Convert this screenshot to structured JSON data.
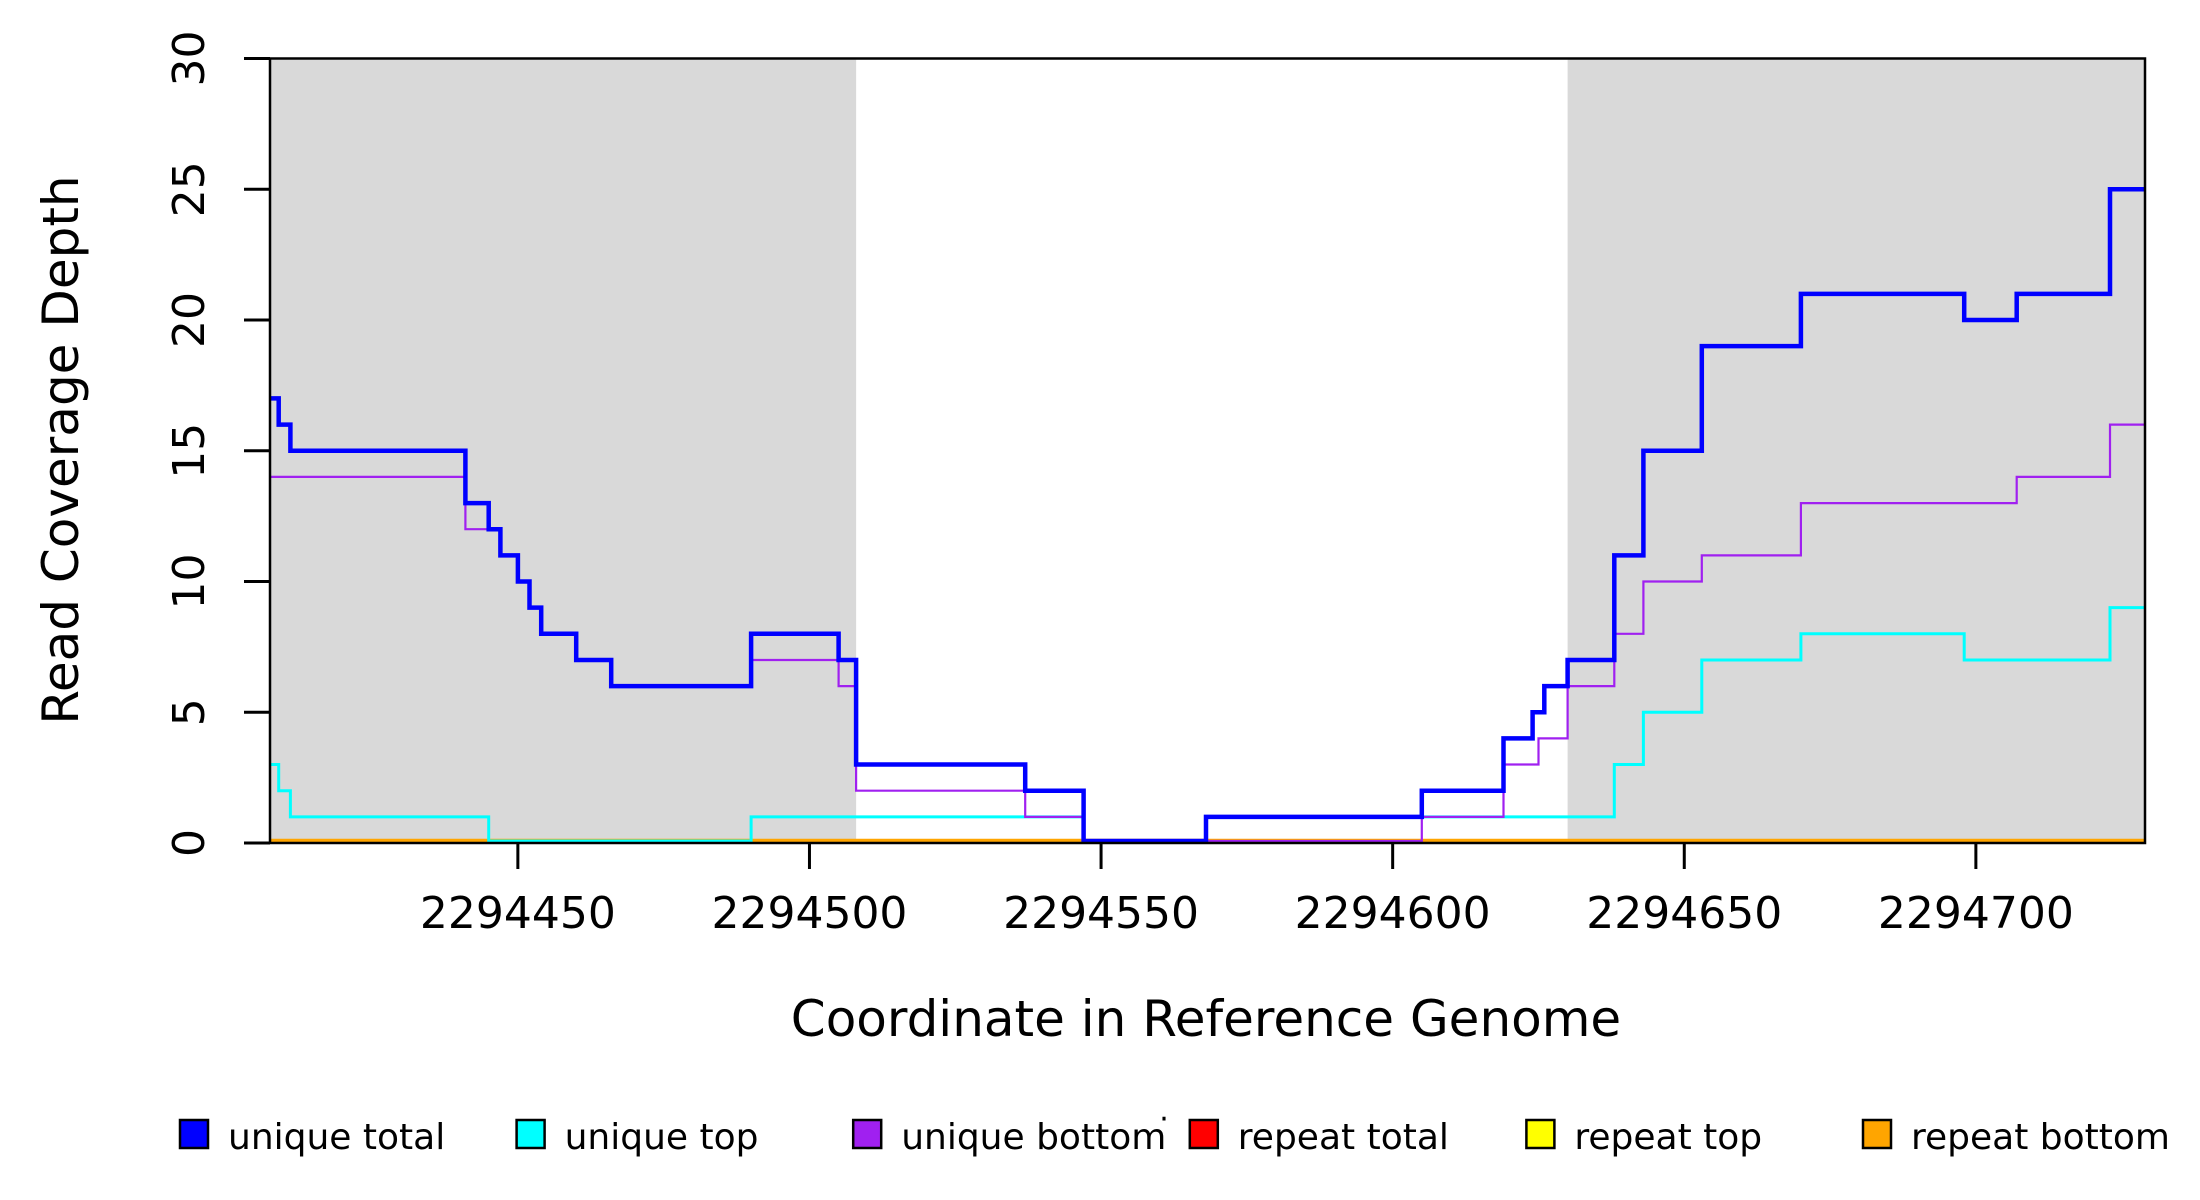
{
  "chart_data": {
    "type": "step-line",
    "title": "",
    "xlabel": "Coordinate in Reference Genome",
    "ylabel": "Read Coverage Depth",
    "xlim": [
      2294407.5,
      2294729
    ],
    "ylim": [
      0,
      30
    ],
    "xticks": [
      2294450,
      2294500,
      2294550,
      2294600,
      2294650,
      2294700
    ],
    "yticks": [
      0,
      5,
      10,
      15,
      20,
      25,
      30
    ],
    "grid": false,
    "background_color": "#ffffff",
    "shaded_region_color": "#d9d9d9",
    "shaded_regions": [
      {
        "x0": 2294407.5,
        "x1": 2294508
      },
      {
        "x0": 2294630,
        "x1": 2294729
      }
    ],
    "series": [
      {
        "name": "repeat total",
        "color": "#ff0000",
        "line_width": 2.5,
        "points": [
          [
            2294407.5,
            0
          ]
        ]
      },
      {
        "name": "repeat top",
        "color": "#ffff00",
        "line_width": 2.5,
        "points": [
          [
            2294407.5,
            0
          ]
        ]
      },
      {
        "name": "repeat bottom",
        "color": "#ffa500",
        "line_width": 4.5,
        "points": [
          [
            2294407.5,
            0
          ]
        ]
      },
      {
        "name": "unique top",
        "color": "#00ffff",
        "line_width": 3,
        "points": [
          [
            2294407.5,
            3
          ],
          [
            2294409,
            2
          ],
          [
            2294411,
            1
          ],
          [
            2294445,
            0
          ],
          [
            2294490,
            1
          ],
          [
            2294547,
            0
          ],
          [
            2294568,
            1
          ],
          [
            2294638,
            3
          ],
          [
            2294643,
            5
          ],
          [
            2294653,
            7
          ],
          [
            2294670,
            8
          ],
          [
            2294698,
            7
          ],
          [
            2294723,
            9
          ]
        ]
      },
      {
        "name": "unique bottom",
        "color": "#a020f0",
        "line_width": 2.2,
        "points": [
          [
            2294407.5,
            14
          ],
          [
            2294441,
            12
          ],
          [
            2294447,
            11
          ],
          [
            2294450,
            10
          ],
          [
            2294452,
            9
          ],
          [
            2294454,
            8
          ],
          [
            2294460,
            7
          ],
          [
            2294466,
            6
          ],
          [
            2294490,
            7
          ],
          [
            2294505,
            6
          ],
          [
            2294508,
            2
          ],
          [
            2294537,
            1
          ],
          [
            2294547,
            0
          ],
          [
            2294605,
            1
          ],
          [
            2294619,
            3
          ],
          [
            2294625,
            4
          ],
          [
            2294630,
            6
          ],
          [
            2294638,
            8
          ],
          [
            2294643,
            10
          ],
          [
            2294653,
            11
          ],
          [
            2294670,
            13
          ],
          [
            2294707,
            14
          ],
          [
            2294723,
            16
          ]
        ]
      },
      {
        "name": "unique total",
        "color": "#0000ff",
        "line_width": 4.5,
        "points": [
          [
            2294407.5,
            17
          ],
          [
            2294409,
            16
          ],
          [
            2294411,
            15
          ],
          [
            2294441,
            13
          ],
          [
            2294445,
            12
          ],
          [
            2294447,
            11
          ],
          [
            2294450,
            10
          ],
          [
            2294452,
            9
          ],
          [
            2294454,
            8
          ],
          [
            2294460,
            7
          ],
          [
            2294466,
            6
          ],
          [
            2294490,
            8
          ],
          [
            2294505,
            7
          ],
          [
            2294508,
            3
          ],
          [
            2294537,
            2
          ],
          [
            2294547,
            0
          ],
          [
            2294568,
            1
          ],
          [
            2294605,
            2
          ],
          [
            2294619,
            4
          ],
          [
            2294624,
            5
          ],
          [
            2294626,
            6
          ],
          [
            2294630,
            7
          ],
          [
            2294638,
            11
          ],
          [
            2294643,
            15
          ],
          [
            2294653,
            19
          ],
          [
            2294670,
            21
          ],
          [
            2294698,
            20
          ],
          [
            2294707,
            21
          ],
          [
            2294723,
            25
          ]
        ]
      }
    ],
    "legend": {
      "position": "bottom",
      "items": [
        {
          "label": "unique total",
          "color": "#0000ff"
        },
        {
          "label": "unique top",
          "color": "#00ffff"
        },
        {
          "label": "unique bottom",
          "color": "#a020f0"
        },
        {
          "label": "repeat total",
          "color": "#ff0000"
        },
        {
          "label": "repeat top",
          "color": "#ffff00"
        },
        {
          "label": "repeat bottom",
          "color": "#ffa500"
        }
      ],
      "stray_dot": "·"
    }
  }
}
